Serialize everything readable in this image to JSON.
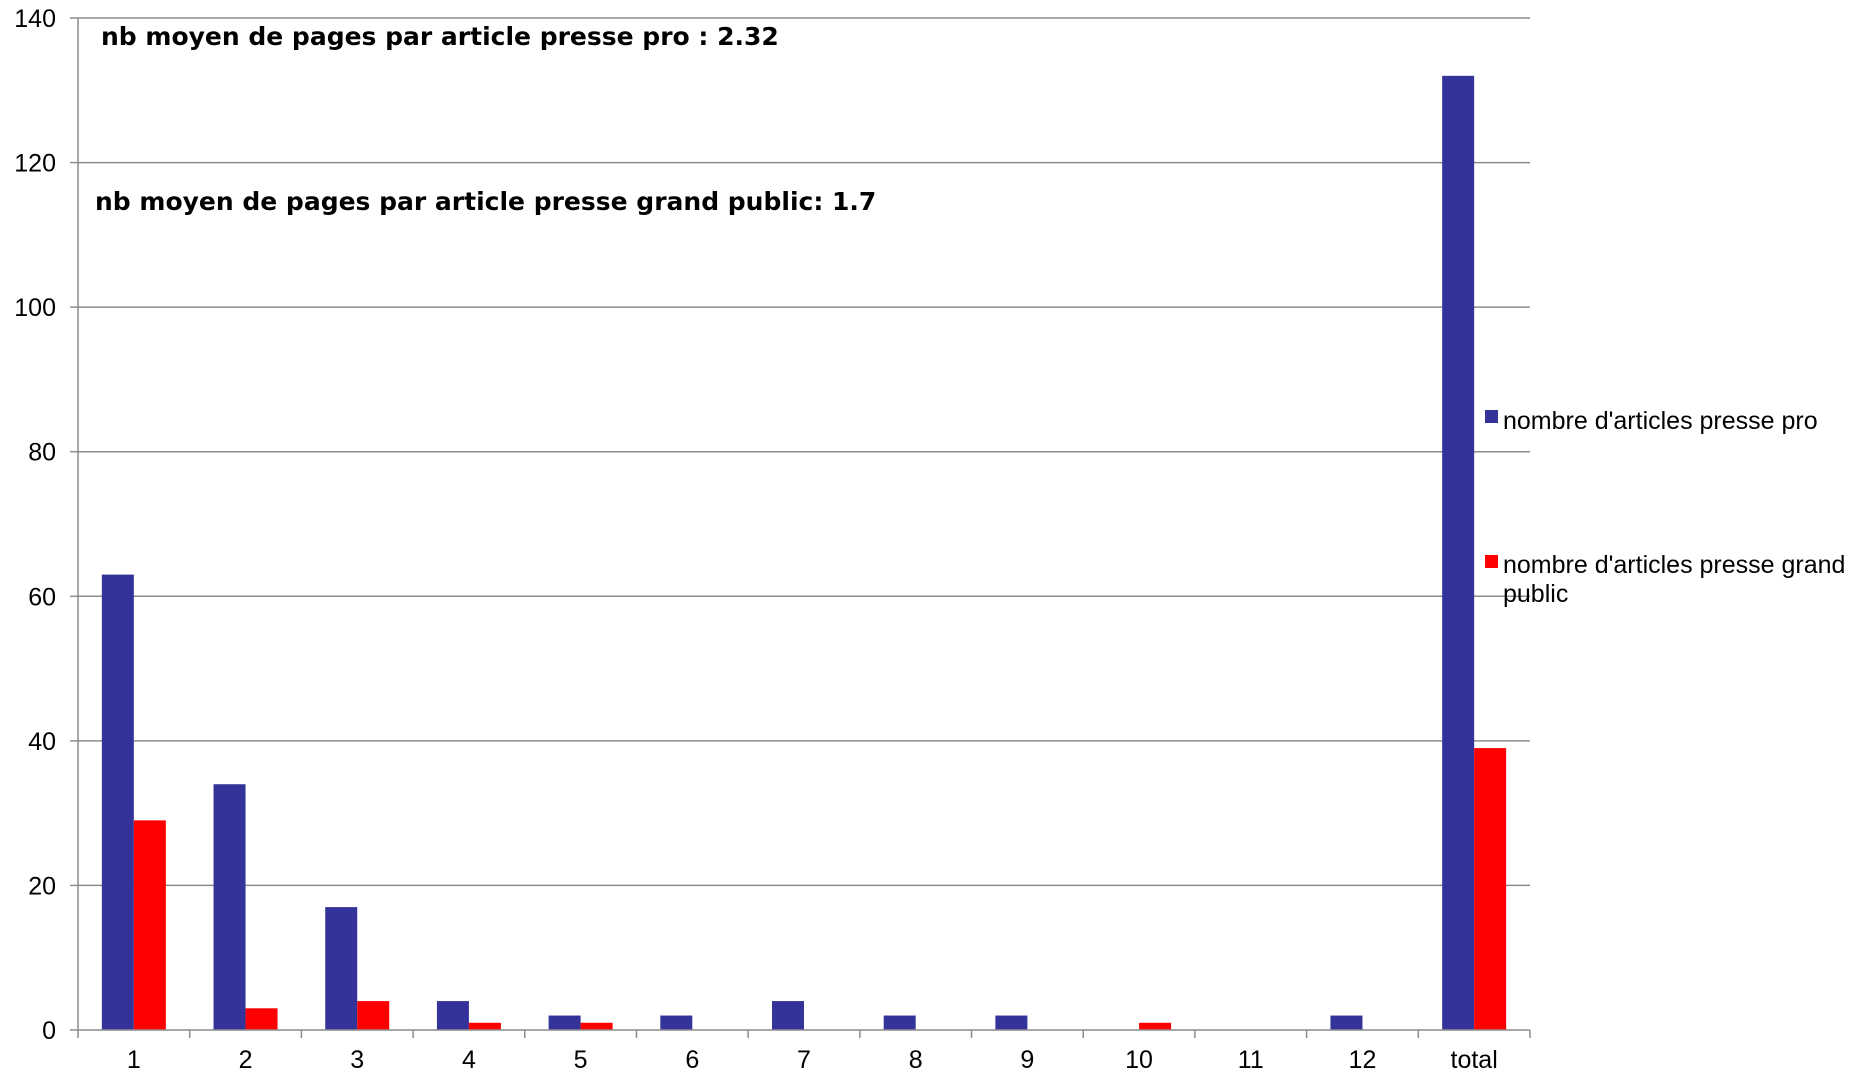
{
  "chart_data": {
    "type": "bar",
    "categories": [
      "1",
      "2",
      "3",
      "4",
      "5",
      "6",
      "7",
      "8",
      "9",
      "10",
      "11",
      "12",
      "total"
    ],
    "series": [
      {
        "name": "nombre d'articles presse pro",
        "color": "#333399",
        "values": [
          63,
          34,
          17,
          4,
          2,
          2,
          4,
          2,
          2,
          0,
          0,
          2,
          132
        ]
      },
      {
        "name": "nombre d'articles presse grand public",
        "color": "#ff0000",
        "values": [
          29,
          3,
          4,
          1,
          1,
          0,
          0,
          0,
          0,
          1,
          0,
          0,
          39
        ]
      }
    ],
    "ylim": [
      0,
      140
    ],
    "yticks": [
      0,
      20,
      40,
      60,
      80,
      100,
      120,
      140
    ],
    "grid": true,
    "legend_position": "right",
    "annotations": [
      "nb moyen de pages par article presse pro : 2.32",
      "nb moyen de pages par article presse grand public: 1.7"
    ]
  },
  "legend": {
    "pro_line1": "nombre d'articles presse pro",
    "grand_public_line1": "nombre d'articles presse grand",
    "grand_public_line2": "public"
  }
}
